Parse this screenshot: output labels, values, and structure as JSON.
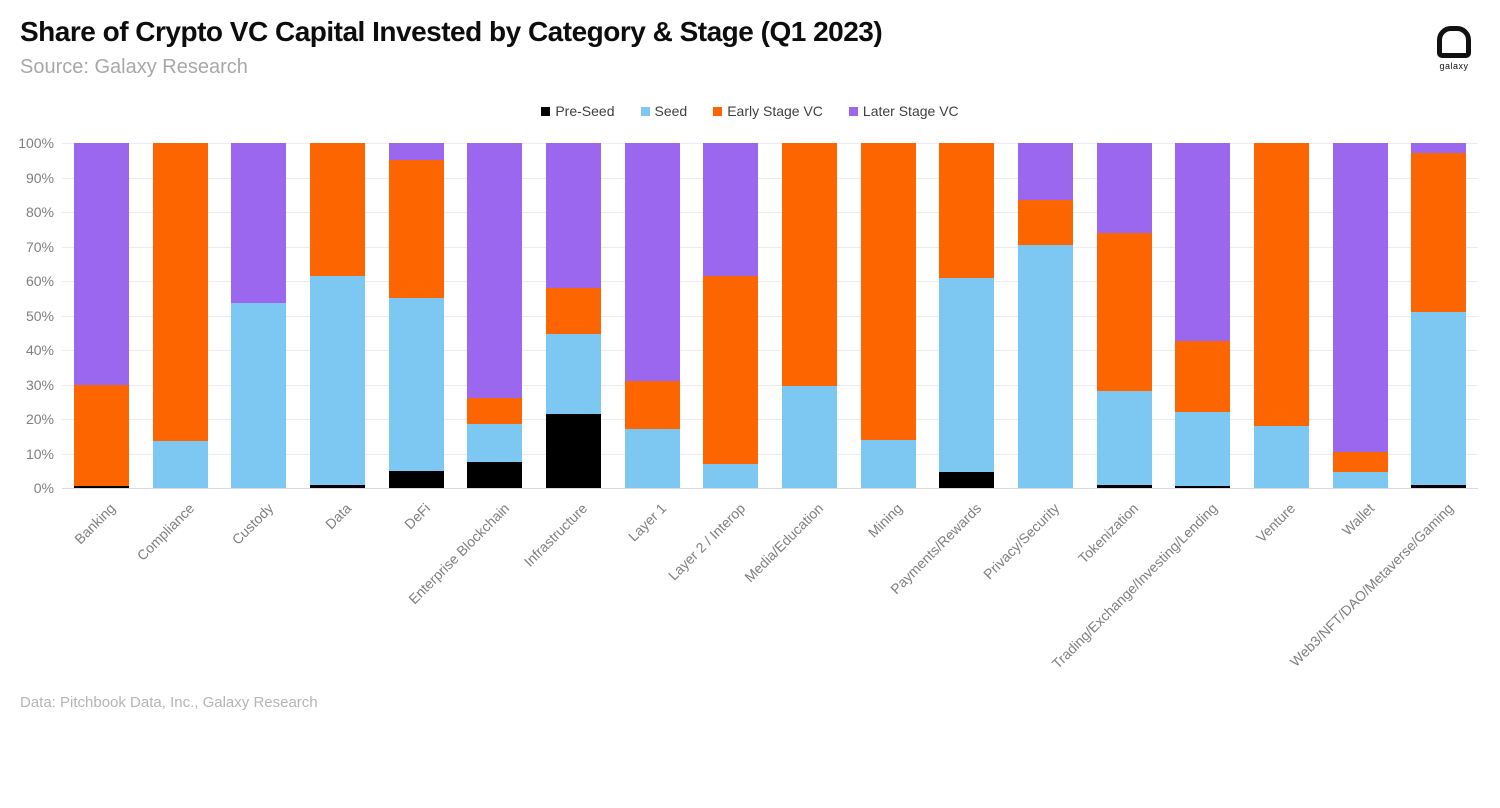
{
  "header": {
    "title": "Share of Crypto VC Capital Invested by Category & Stage (Q1 2023)",
    "subtitle": "Source: Galaxy Research",
    "logo_text": "galaxy"
  },
  "footer": {
    "note": "Data: Pitchbook Data, Inc., Galaxy Research"
  },
  "y_axis": {
    "tick_labels": [
      "0%",
      "10%",
      "20%",
      "30%",
      "40%",
      "50%",
      "60%",
      "70%",
      "80%",
      "90%",
      "100%"
    ]
  },
  "chart_data": {
    "type": "bar",
    "stacked": true,
    "title": "Share of Crypto VC Capital Invested by Category & Stage (Q1 2023)",
    "xlabel": "",
    "ylabel": "",
    "ylim": [
      0,
      100
    ],
    "y_tick_step": 10,
    "grid": true,
    "legend_position": "top-center",
    "categories": [
      "Banking",
      "Compliance",
      "Custody",
      "Data",
      "DeFi",
      "Enterprise Blockchain",
      "Infrastructure",
      "Layer 1",
      "Layer 2 / Interop",
      "Media/Education",
      "Mining",
      "Payments/Rewards",
      "Privacy/Security",
      "Tokenization",
      "Trading/Exchange/Investing/Lending",
      "Venture",
      "Wallet",
      "Web3/NFT/DAO/Metaverse/Gaming"
    ],
    "series": [
      {
        "name": "Pre-Seed",
        "color": "#000000",
        "values": [
          0.5,
          0,
          0,
          1,
          5,
          7.5,
          21.5,
          0,
          0,
          0,
          0,
          4.5,
          0,
          1,
          0.5,
          0,
          0,
          1
        ]
      },
      {
        "name": "Seed",
        "color": "#7dc7f3",
        "values": [
          0,
          13.5,
          53.5,
          60.5,
          50,
          11,
          23,
          17,
          7,
          29.5,
          14,
          56.5,
          70.5,
          27,
          21.5,
          18,
          4.5,
          50
        ]
      },
      {
        "name": "Early Stage VC",
        "color": "#fd6500",
        "values": [
          29.5,
          86.5,
          0,
          38.5,
          40,
          7.5,
          13.5,
          14,
          54.5,
          70.5,
          86,
          39,
          13,
          46,
          20.5,
          82,
          6,
          46
        ]
      },
      {
        "name": "Later Stage VC",
        "color": "#9b67ee",
        "values": [
          70,
          0,
          46.5,
          0,
          5,
          74,
          42,
          69,
          38.5,
          0,
          0,
          0,
          16.5,
          26,
          57.5,
          0,
          89.5,
          3
        ]
      }
    ]
  }
}
